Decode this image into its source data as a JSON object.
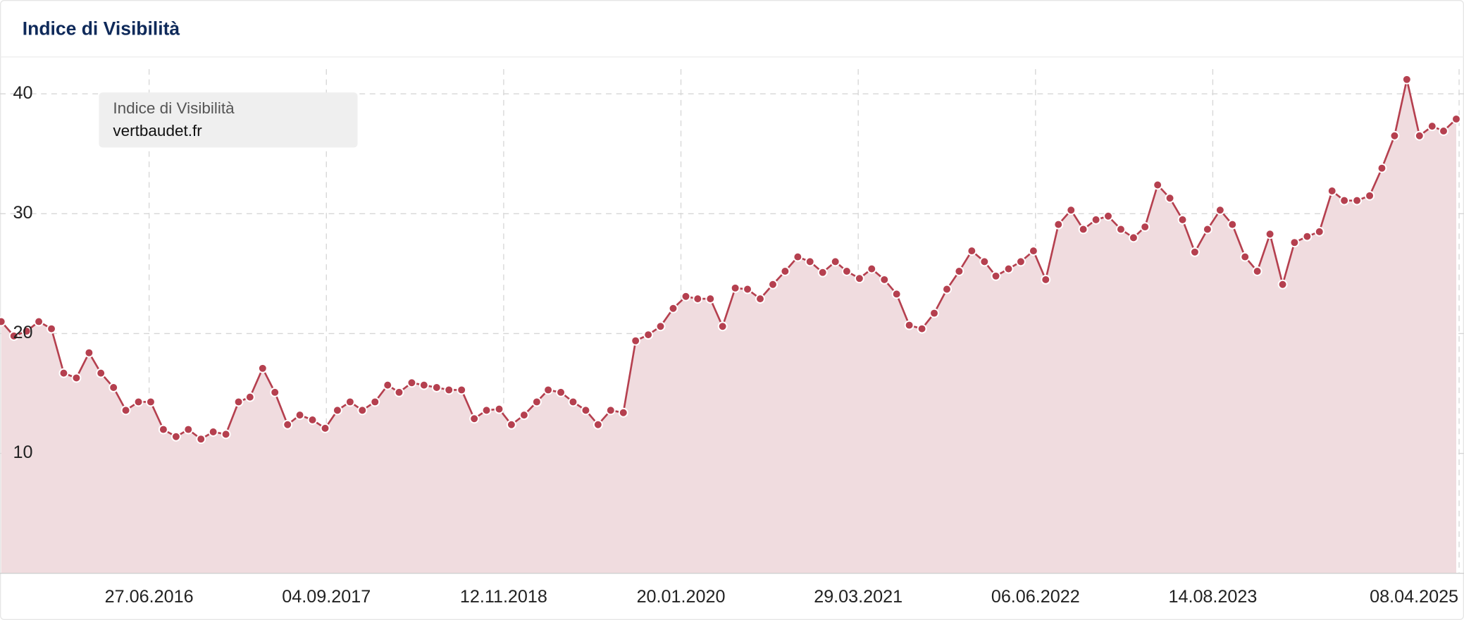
{
  "chart_data": {
    "type": "area",
    "title": "Indice di Visibilità",
    "legend_title": "Indice di Visibilità",
    "x": [
      "2015-07-01",
      "2015-08-01",
      "2015-09-01",
      "2015-10-01",
      "2015-11-01",
      "2015-12-01",
      "2016-01-01",
      "2016-02-01",
      "2016-03-01",
      "2016-04-01",
      "2016-05-01",
      "2016-06-01",
      "2016-07-01",
      "2016-08-01",
      "2016-09-01",
      "2016-10-01",
      "2016-11-01",
      "2016-12-01",
      "2017-01-01",
      "2017-02-01",
      "2017-03-01",
      "2017-04-01",
      "2017-05-01",
      "2017-06-01",
      "2017-07-01",
      "2017-08-01",
      "2017-09-01",
      "2017-10-01",
      "2017-11-01",
      "2017-12-01",
      "2018-01-01",
      "2018-02-01",
      "2018-03-01",
      "2018-04-01",
      "2018-05-01",
      "2018-06-01",
      "2018-07-01",
      "2018-08-01",
      "2018-09-01",
      "2018-10-01",
      "2018-11-01",
      "2018-12-01",
      "2019-01-01",
      "2019-02-01",
      "2019-03-01",
      "2019-04-01",
      "2019-05-01",
      "2019-06-01",
      "2019-07-01",
      "2019-08-01",
      "2019-09-01",
      "2019-10-01",
      "2019-11-01",
      "2019-12-01",
      "2020-01-01",
      "2020-02-01",
      "2020-03-01",
      "2020-04-01",
      "2020-05-01",
      "2020-06-01",
      "2020-07-01",
      "2020-08-01",
      "2020-09-01",
      "2020-10-01",
      "2020-11-01",
      "2020-12-01",
      "2021-01-01",
      "2021-02-01",
      "2021-03-01",
      "2021-04-01",
      "2021-05-01",
      "2021-06-01",
      "2021-07-01",
      "2021-08-01",
      "2021-09-01",
      "2021-10-01",
      "2021-11-01",
      "2021-12-01",
      "2022-01-01",
      "2022-02-01",
      "2022-03-01",
      "2022-04-01",
      "2022-05-01",
      "2022-06-01",
      "2022-07-01",
      "2022-08-01",
      "2022-09-01",
      "2022-10-01",
      "2022-11-01",
      "2022-12-01",
      "2023-01-01",
      "2023-02-01",
      "2023-03-01",
      "2023-04-01",
      "2023-05-01",
      "2023-06-01",
      "2023-07-01",
      "2023-08-01",
      "2023-09-01",
      "2023-10-01",
      "2023-11-01",
      "2023-12-01",
      "2024-01-01",
      "2024-02-01",
      "2024-03-01",
      "2024-04-01",
      "2024-05-01",
      "2024-06-01",
      "2024-07-01",
      "2024-08-01",
      "2024-09-01",
      "2024-10-01",
      "2024-11-01",
      "2024-12-01",
      "2025-01-01",
      "2025-02-01",
      "2025-03-01",
      "2025-04-01"
    ],
    "series": [
      {
        "name": "vertbaudet.fr",
        "color": "#b5404f",
        "fill": "#f0dcdf",
        "values": [
          21,
          19.8,
          20.2,
          21,
          20.4,
          16.7,
          16.3,
          18.4,
          16.7,
          15.5,
          13.6,
          14.3,
          14.3,
          12.0,
          11.4,
          12.0,
          11.2,
          11.8,
          11.6,
          14.3,
          14.7,
          17.1,
          15.1,
          12.4,
          13.2,
          12.8,
          12.1,
          13.6,
          14.3,
          13.6,
          14.3,
          15.7,
          15.1,
          15.9,
          15.7,
          15.5,
          15.3,
          15.3,
          12.9,
          13.6,
          13.7,
          12.4,
          13.2,
          14.3,
          15.3,
          15.1,
          14.3,
          13.6,
          12.4,
          13.6,
          13.4,
          19.4,
          19.9,
          20.6,
          22.1,
          23.1,
          22.9,
          22.9,
          20.6,
          23.8,
          23.7,
          22.9,
          24.1,
          25.2,
          26.4,
          26.0,
          25.1,
          26.0,
          25.2,
          24.6,
          25.4,
          24.5,
          23.3,
          20.7,
          20.4,
          21.7,
          23.7,
          25.2,
          26.9,
          26.0,
          24.8,
          25.4,
          26.0,
          26.9,
          24.5,
          29.1,
          30.3,
          28.7,
          29.5,
          29.8,
          28.7,
          28.0,
          28.9,
          32.4,
          31.3,
          29.5,
          26.8,
          28.7,
          30.3,
          29.1,
          26.4,
          25.2,
          28.3,
          24.1,
          27.6,
          28.1,
          28.5,
          31.9,
          31.1,
          31.1,
          31.5,
          33.8,
          36.5,
          41.2,
          36.5,
          37.3,
          36.9,
          37.9
        ]
      }
    ],
    "xlim": [
      "2015-06-28",
      "2025-04-20"
    ],
    "xticks": [
      {
        "value": "2016-06-27",
        "label": "27.06.2016"
      },
      {
        "value": "2017-09-04",
        "label": "04.09.2017"
      },
      {
        "value": "2018-11-12",
        "label": "12.11.2018"
      },
      {
        "value": "2020-01-20",
        "label": "20.01.2020"
      },
      {
        "value": "2021-03-29",
        "label": "29.03.2021"
      },
      {
        "value": "2022-06-06",
        "label": "06.06.2022"
      },
      {
        "value": "2023-08-14",
        "label": "14.08.2023"
      },
      {
        "value": "2025-04-08",
        "label": "08.04.2025"
      }
    ],
    "ylim": [
      0,
      43
    ],
    "yticks": [
      10,
      20,
      30,
      40
    ],
    "grid": true
  }
}
